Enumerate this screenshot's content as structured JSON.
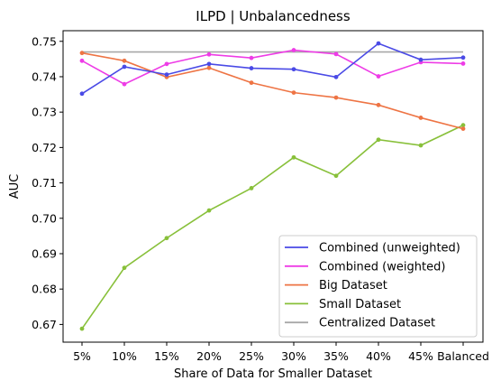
{
  "chart_data": {
    "type": "line",
    "title": "ILPD | Unbalancedness",
    "xlabel": "Share of Data for Smaller Dataset",
    "ylabel": "AUC",
    "categories": [
      "5%",
      "10%",
      "15%",
      "20%",
      "25%",
      "30%",
      "35%",
      "40%",
      "45%",
      "Balanced"
    ],
    "ylim": [
      0.665,
      0.753
    ],
    "yticks": [
      0.67,
      0.68,
      0.69,
      0.7,
      0.71,
      0.72,
      0.73,
      0.74,
      0.75
    ],
    "ytick_labels": [
      "0.67",
      "0.68",
      "0.69",
      "0.70",
      "0.71",
      "0.72",
      "0.73",
      "0.74",
      "0.75"
    ],
    "grid": false,
    "legend_position": "bottom-right",
    "series": [
      {
        "name": "Combined (unweighted)",
        "color": "#4a4ae6",
        "markers": true,
        "values": [
          0.7352,
          0.7428,
          0.7406,
          0.7436,
          0.7424,
          0.7421,
          0.7399,
          0.7494,
          0.7448,
          0.7454
        ]
      },
      {
        "name": "Combined (weighted)",
        "color": "#ee3ce6",
        "markers": true,
        "values": [
          0.7445,
          0.7379,
          0.7436,
          0.7463,
          0.7453,
          0.7475,
          0.7464,
          0.7401,
          0.7441,
          0.7437
        ]
      },
      {
        "name": "Big Dataset",
        "color": "#ee7444",
        "markers": true,
        "values": [
          0.7467,
          0.7445,
          0.7399,
          0.7425,
          0.7383,
          0.7355,
          0.7341,
          0.732,
          0.7284,
          0.7253
        ]
      },
      {
        "name": "Small Dataset",
        "color": "#88c03a",
        "markers": true,
        "values": [
          0.6688,
          0.686,
          0.6944,
          0.7022,
          0.7085,
          0.7172,
          0.712,
          0.7222,
          0.7206,
          0.7263
        ]
      },
      {
        "name": "Centralized Dataset",
        "color": "#a8a8a8",
        "markers": false,
        "values": [
          0.747,
          0.747,
          0.747,
          0.747,
          0.747,
          0.747,
          0.747,
          0.747,
          0.747,
          0.747
        ]
      }
    ]
  }
}
